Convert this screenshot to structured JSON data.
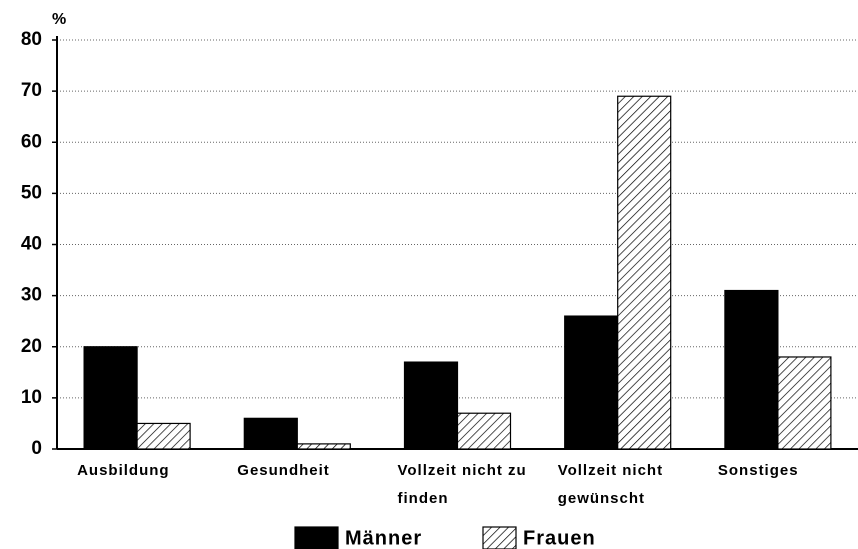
{
  "chart_data": {
    "type": "bar",
    "y_label": "%",
    "categories": [
      "Ausbildung",
      "Gesundheit",
      "Vollzeit nicht zu finden",
      "Vollzeit nicht gewünscht",
      "Sonstiges"
    ],
    "series": [
      {
        "name": "Männer",
        "color": "#000000",
        "hatch": false,
        "values": [
          20,
          6,
          17,
          26,
          31
        ]
      },
      {
        "name": "Frauen",
        "color": "#000000",
        "hatch": true,
        "values": [
          5,
          1,
          7,
          69,
          18
        ]
      }
    ],
    "ylim": [
      0,
      80
    ],
    "yticks": [
      0,
      10,
      20,
      30,
      40,
      50,
      60,
      70,
      80
    ],
    "grid": true,
    "legend": "bottom"
  }
}
